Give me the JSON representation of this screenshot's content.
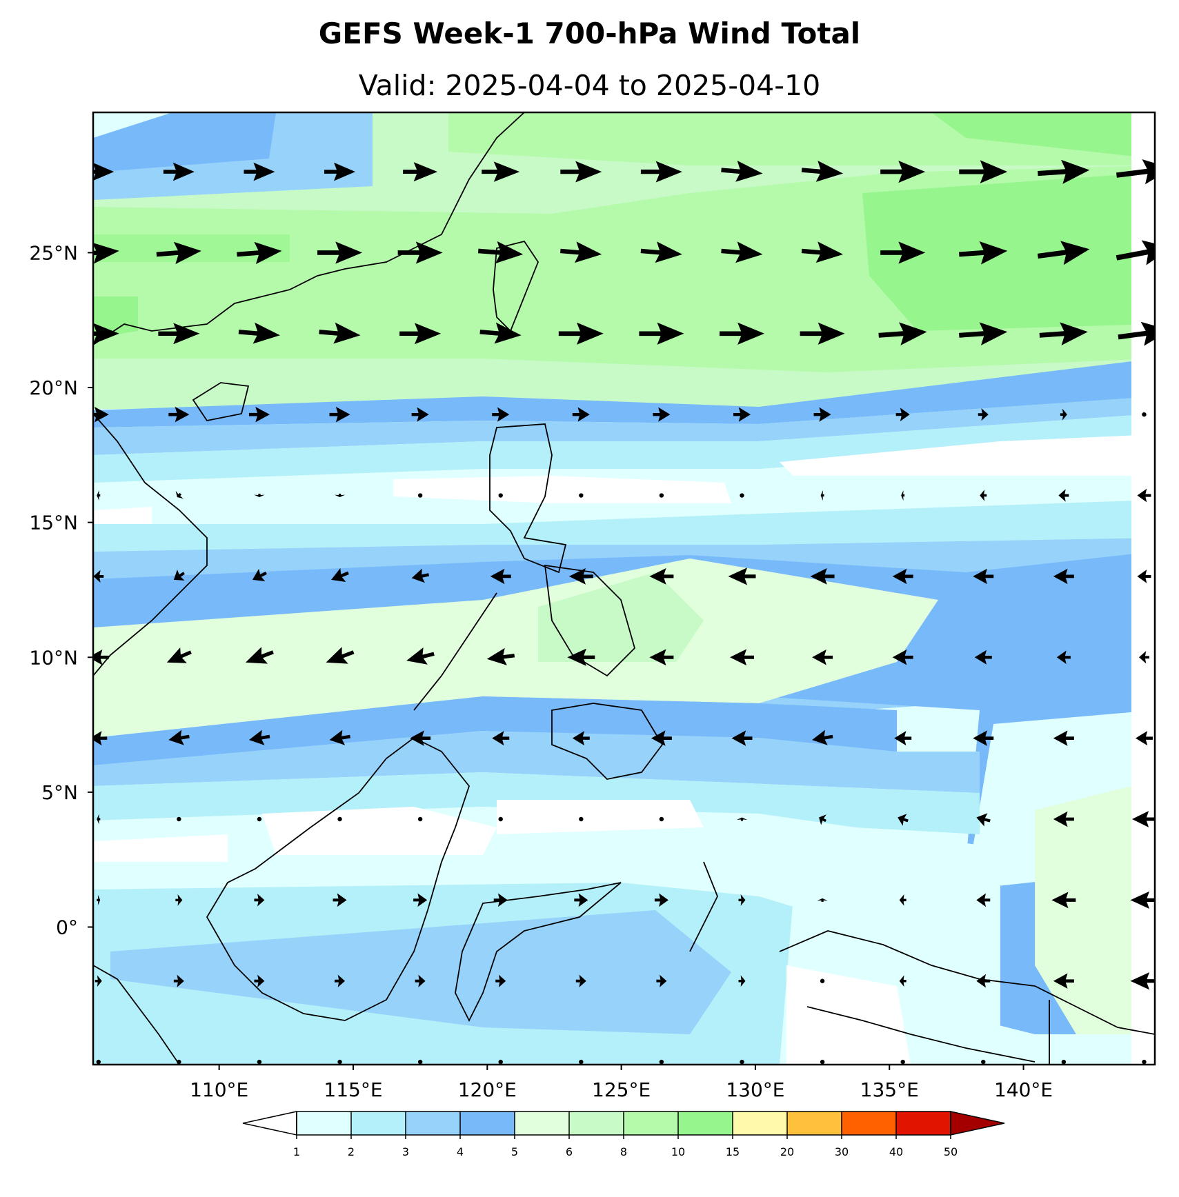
{
  "title": "GEFS Week-1 700-hPa Wind Total",
  "subtitle": "Valid: 2025-04-04 to 2025-04-10",
  "map": {
    "lon_range": [
      105.3,
      144.9
    ],
    "lat_range": [
      -5.1,
      30.2
    ],
    "x_ticks": [
      "110°E",
      "115°E",
      "120°E",
      "125°E",
      "130°E",
      "135°E",
      "140°E"
    ],
    "x_tick_values": [
      110,
      115,
      120,
      125,
      130,
      135,
      140
    ],
    "y_ticks": [
      "25°N",
      "20°N",
      "15°N",
      "10°N",
      "5°N",
      "0°"
    ],
    "y_tick_values": [
      25,
      20,
      15,
      10,
      5,
      0
    ]
  },
  "colorbar": {
    "levels": [
      "1",
      "2",
      "3",
      "4",
      "5",
      "6",
      "8",
      "10",
      "15",
      "20",
      "30",
      "40",
      "50"
    ],
    "colors": [
      "#e0ffff",
      "#b4f0fa",
      "#96d2fa",
      "#78b9fa",
      "#e1ffdc",
      "#c8fac8",
      "#b4faaa",
      "#96f58c",
      "#fffaaa",
      "#ffc03c",
      "#ff6000",
      "#e11400"
    ],
    "under_color": "#ffffff",
    "over_color": "#a50000"
  },
  "wind_field": {
    "lats": [
      28,
      25,
      22,
      19,
      16,
      13,
      10,
      7,
      4,
      1,
      -2,
      -5
    ],
    "lons": [
      105.5,
      108.5,
      111.5,
      114.5,
      117.5,
      120.5,
      123.5,
      126.5,
      129.5,
      132.5,
      135.5,
      138.5,
      141.5,
      144.5
    ],
    "u_ms": [
      [
        9,
        9,
        9,
        9,
        10,
        11,
        12,
        12,
        12,
        12,
        13,
        14,
        15,
        16
      ],
      [
        12,
        13,
        13,
        13,
        13,
        13,
        12,
        12,
        12,
        12,
        13,
        14,
        15,
        16
      ],
      [
        12,
        12,
        12,
        12,
        12,
        12,
        13,
        13,
        13,
        13,
        14,
        14,
        14,
        15
      ],
      [
        6,
        6,
        6,
        6,
        5,
        5,
        5,
        5,
        5,
        5,
        4,
        3,
        2,
        0
      ],
      [
        -1,
        -1,
        0,
        0,
        0,
        0,
        0,
        0,
        0,
        -1,
        -1,
        -2,
        -3,
        -4
      ],
      [
        -3,
        -3,
        -4,
        -5,
        -5,
        -6,
        -7,
        -7,
        -8,
        -7,
        -6,
        -6,
        -6,
        -4
      ],
      [
        -6,
        -7,
        -8,
        -8,
        -8,
        -8,
        -8,
        -7,
        -7,
        -6,
        -6,
        -5,
        -4,
        -3
      ],
      [
        -5,
        -6,
        -6,
        -6,
        -6,
        -5,
        -5,
        -6,
        -6,
        -6,
        -5,
        -6,
        -6,
        -5
      ],
      [
        -1,
        0,
        0,
        0,
        0,
        0,
        0,
        0,
        0,
        -2,
        -3,
        -4,
        -6,
        -7
      ],
      [
        1,
        2,
        3,
        4,
        4,
        4,
        4,
        4,
        2,
        0,
        -2,
        -4,
        -7,
        -8
      ],
      [
        2,
        3,
        3,
        3,
        3,
        3,
        3,
        3,
        2,
        0,
        -2,
        -4,
        -6,
        -8
      ],
      [
        0,
        0,
        0,
        0,
        0,
        0,
        0,
        0,
        0,
        0,
        0,
        0,
        0,
        0
      ]
    ],
    "v_ms": [
      [
        0,
        0,
        0,
        0,
        0,
        0,
        0,
        0,
        -1,
        -1,
        0,
        0,
        1,
        2
      ],
      [
        1,
        1,
        1,
        0,
        0,
        -1,
        -1,
        -1,
        -1,
        -1,
        0,
        1,
        2,
        3
      ],
      [
        0,
        0,
        -1,
        -1,
        0,
        -1,
        0,
        0,
        0,
        0,
        1,
        1,
        1,
        2
      ],
      [
        0,
        0,
        0,
        0,
        0,
        0,
        0,
        0,
        0,
        0,
        0,
        0,
        0,
        0
      ],
      [
        0,
        -1,
        -1,
        -1,
        0,
        0,
        0,
        0,
        0,
        0,
        0,
        0,
        0,
        0
      ],
      [
        0,
        -2,
        -2,
        -2,
        -1,
        0,
        0,
        0,
        0,
        0,
        0,
        0,
        0,
        0
      ],
      [
        0,
        -3,
        -3,
        -3,
        -2,
        -1,
        0,
        0,
        0,
        0,
        0,
        0,
        0,
        0
      ],
      [
        0,
        -1,
        -1,
        -1,
        0,
        0,
        0,
        0,
        0,
        -1,
        0,
        0,
        0,
        0
      ],
      [
        0,
        0,
        0,
        0,
        0,
        0,
        0,
        0,
        1,
        1,
        1,
        1,
        0,
        0
      ],
      [
        0,
        0,
        0,
        0,
        0,
        0,
        0,
        0,
        0,
        1,
        0,
        0,
        0,
        0
      ],
      [
        0,
        0,
        0,
        0,
        0,
        0,
        0,
        0,
        0,
        0,
        0,
        0,
        0,
        0
      ],
      [
        0,
        0,
        0,
        0,
        0,
        0,
        0,
        0,
        0,
        0,
        0,
        0,
        0,
        0
      ]
    ]
  }
}
